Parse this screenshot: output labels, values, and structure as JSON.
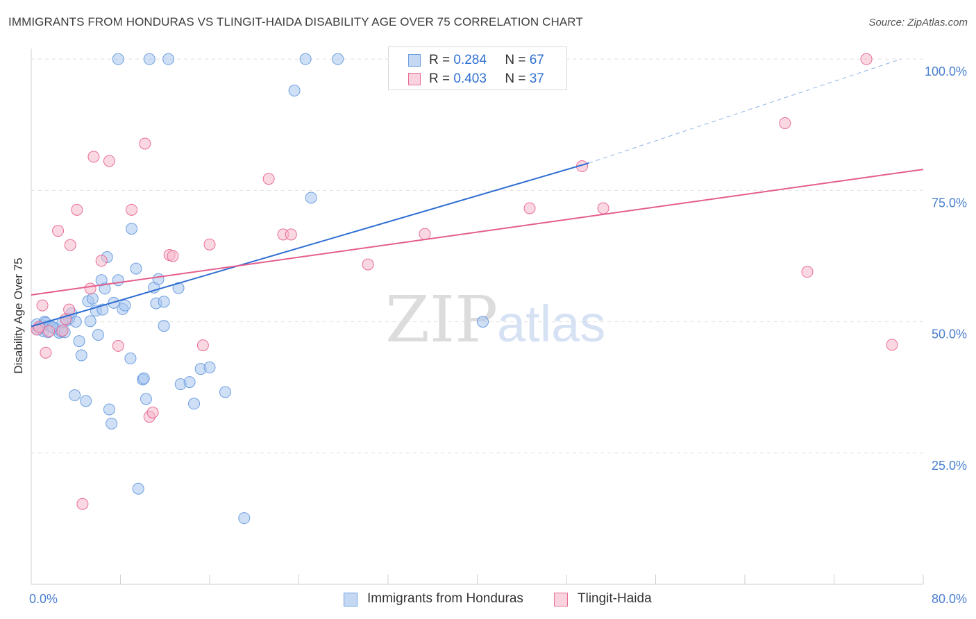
{
  "header": {
    "title": "IMMIGRANTS FROM HONDURAS VS TLINGIT-HAIDA DISABILITY AGE OVER 75 CORRELATION CHART",
    "source": "Source: ZipAtlas.com"
  },
  "watermark": {
    "zip": "ZIP",
    "atlas": "atlas"
  },
  "legend_top": {
    "rows": [
      {
        "r_label": "R =",
        "r_value": "0.284",
        "n_label": "N =",
        "n_value": "67",
        "color": "#a7c5ee"
      },
      {
        "r_label": "R =",
        "r_value": "0.403",
        "n_label": "N =",
        "n_value": "37",
        "color": "#f5b8cb"
      }
    ]
  },
  "chart_data": {
    "type": "scatter",
    "title": "IMMIGRANTS FROM HONDURAS VS TLINGIT-HAIDA DISABILITY AGE OVER 75 CORRELATION CHART",
    "xlabel": "",
    "ylabel": "Disability Age Over 75",
    "xlim": [
      0,
      80
    ],
    "ylim": [
      0,
      102
    ],
    "x_tick_labels": [
      "0.0%",
      "80.0%"
    ],
    "y_tick_labels": [
      "25.0%",
      "50.0%",
      "75.0%",
      "100.0%"
    ],
    "y_ticks": [
      25,
      50,
      75,
      100
    ],
    "grid": true,
    "legend_position": "bottom",
    "series": [
      {
        "name": "Immigrants from Honduras",
        "color": "#6d9fe0",
        "fill": "#a7c5ee",
        "trend": {
          "x": [
            0,
            50
          ],
          "y": [
            49.1,
            80.2
          ],
          "dashed_extension_to": [
            78,
            100
          ]
        },
        "points": [
          [
            0.5,
            49.5
          ],
          [
            0.6,
            48.5
          ],
          [
            0.8,
            49.0
          ],
          [
            1.0,
            49.3
          ],
          [
            1.1,
            48.2
          ],
          [
            1.2,
            50.0
          ],
          [
            1.3,
            49.8
          ],
          [
            1.5,
            48.0
          ],
          [
            1.7,
            49.2
          ],
          [
            2.0,
            48.8
          ],
          [
            2.3,
            48.6
          ],
          [
            2.5,
            47.9
          ],
          [
            2.7,
            48.1
          ],
          [
            3.0,
            48.0
          ],
          [
            3.2,
            50.2
          ],
          [
            3.4,
            50.6
          ],
          [
            3.6,
            51.6
          ],
          [
            4.0,
            50.0
          ],
          [
            4.3,
            46.3
          ],
          [
            4.5,
            43.6
          ],
          [
            3.9,
            36.0
          ],
          [
            4.9,
            34.9
          ],
          [
            5.3,
            50.1
          ],
          [
            5.1,
            53.9
          ],
          [
            5.5,
            54.4
          ],
          [
            5.8,
            52.1
          ],
          [
            6.0,
            47.5
          ],
          [
            6.3,
            57.9
          ],
          [
            6.4,
            52.3
          ],
          [
            6.6,
            56.3
          ],
          [
            6.8,
            62.3
          ],
          [
            7.0,
            33.3
          ],
          [
            7.2,
            30.6
          ],
          [
            7.4,
            53.6
          ],
          [
            7.8,
            57.9
          ],
          [
            8.2,
            52.4
          ],
          [
            8.4,
            53.1
          ],
          [
            8.9,
            43.0
          ],
          [
            9.0,
            67.7
          ],
          [
            9.4,
            60.1
          ],
          [
            10.0,
            39.0
          ],
          [
            10.1,
            39.2
          ],
          [
            10.3,
            35.3
          ],
          [
            11.0,
            56.5
          ],
          [
            11.2,
            53.5
          ],
          [
            11.4,
            58.1
          ],
          [
            11.9,
            49.2
          ],
          [
            11.9,
            53.8
          ],
          [
            13.2,
            56.4
          ],
          [
            13.4,
            38.1
          ],
          [
            14.2,
            38.5
          ],
          [
            14.6,
            34.4
          ],
          [
            15.2,
            41.0
          ],
          [
            16.0,
            41.3
          ],
          [
            17.4,
            36.6
          ],
          [
            9.6,
            18.2
          ],
          [
            19.1,
            12.6
          ],
          [
            7.8,
            100
          ],
          [
            10.6,
            100
          ],
          [
            12.3,
            100
          ],
          [
            24.6,
            100
          ],
          [
            27.5,
            100
          ],
          [
            23.6,
            94.0
          ],
          [
            25.1,
            73.6
          ],
          [
            40.5,
            50.0
          ],
          [
            1.9,
            49.0
          ],
          [
            2.8,
            49.9
          ]
        ]
      },
      {
        "name": "Tlingit-Haida",
        "color": "#e96c97",
        "fill": "#f5b8cb",
        "trend": {
          "x": [
            0,
            80
          ],
          "y": [
            55.1,
            79.0
          ]
        },
        "points": [
          [
            0.5,
            48.5
          ],
          [
            0.7,
            49.0
          ],
          [
            1.0,
            53.1
          ],
          [
            1.3,
            44.1
          ],
          [
            2.4,
            67.3
          ],
          [
            2.8,
            48.3
          ],
          [
            3.1,
            50.5
          ],
          [
            3.4,
            52.3
          ],
          [
            3.5,
            64.6
          ],
          [
            4.1,
            71.3
          ],
          [
            4.6,
            15.3
          ],
          [
            5.3,
            56.3
          ],
          [
            5.6,
            81.4
          ],
          [
            6.3,
            61.6
          ],
          [
            7.0,
            80.6
          ],
          [
            7.8,
            45.4
          ],
          [
            9.0,
            71.3
          ],
          [
            10.2,
            83.9
          ],
          [
            10.6,
            31.9
          ],
          [
            10.9,
            32.7
          ],
          [
            12.4,
            62.7
          ],
          [
            12.7,
            62.5
          ],
          [
            15.4,
            45.5
          ],
          [
            16.0,
            64.7
          ],
          [
            21.3,
            77.2
          ],
          [
            22.6,
            66.6
          ],
          [
            23.3,
            66.6
          ],
          [
            30.2,
            60.9
          ],
          [
            35.3,
            66.7
          ],
          [
            44.7,
            71.6
          ],
          [
            49.4,
            79.6
          ],
          [
            51.3,
            71.6
          ],
          [
            67.6,
            87.8
          ],
          [
            69.6,
            59.5
          ],
          [
            74.9,
            100
          ],
          [
            77.2,
            45.6
          ],
          [
            1.6,
            48.2
          ]
        ]
      }
    ]
  },
  "legend_bottom": {
    "items": [
      {
        "label": "Immigrants from Honduras",
        "color": "#a7c5ee"
      },
      {
        "label": "Tlingit-Haida",
        "color": "#f5b8cb"
      }
    ]
  }
}
